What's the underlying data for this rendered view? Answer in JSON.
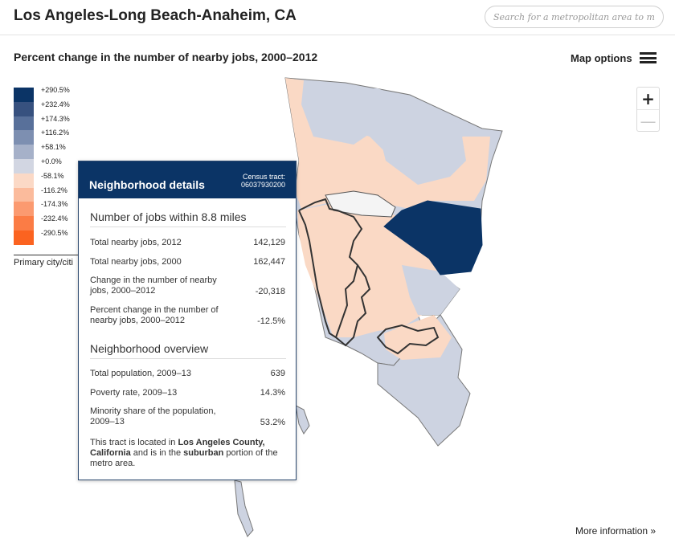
{
  "header": {
    "title": "Los Angeles-Long Beach-Anaheim, CA",
    "search_placeholder": "Search for a metropolitan area to map"
  },
  "subheader": {
    "title": "Percent change in the number of nearby jobs, 2000–2012",
    "map_options_label": "Map options"
  },
  "legend": {
    "items": [
      {
        "label": "+290.5%",
        "color": "#0b3466"
      },
      {
        "label": "+232.4%",
        "color": "#37517f"
      },
      {
        "label": "+174.3%",
        "color": "#58709a"
      },
      {
        "label": "+116.2%",
        "color": "#7d8fb1"
      },
      {
        "label": "+58.1%",
        "color": "#a6b1c9"
      },
      {
        "label": "+0.0%",
        "color": "#d2d6e2"
      },
      {
        "label": "-58.1%",
        "color": "#fbd9c6"
      },
      {
        "label": "-116.2%",
        "color": "#fbbb9c"
      },
      {
        "label": "-174.3%",
        "color": "#fb9a70"
      },
      {
        "label": "-232.4%",
        "color": "#fb7c45"
      },
      {
        "label": "-290.5%",
        "color": "#fb6320"
      }
    ],
    "primary_label": "Primary city/citi"
  },
  "zoom": {
    "in": "+",
    "out": "—"
  },
  "panel": {
    "title": "Neighborhood details",
    "tract_label": "Census tract:",
    "tract_id": "06037930200",
    "jobs_heading": "Number of jobs within 8.8 miles",
    "jobs_rows": [
      {
        "label": "Total nearby jobs, 2012",
        "value": "142,129"
      },
      {
        "label": "Total nearby jobs, 2000",
        "value": "162,447"
      },
      {
        "label": "Change in the number of nearby jobs, 2000–2012",
        "value": "-20,318"
      },
      {
        "label": "Percent change in the number of nearby jobs, 2000–2012",
        "value": "-12.5%"
      }
    ],
    "overview_heading": "Neighborhood overview",
    "overview_rows": [
      {
        "label": "Total population, 2009–13",
        "value": "639"
      },
      {
        "label": "Poverty rate, 2009–13",
        "value": "14.3%"
      },
      {
        "label": "Minority share of the population, 2009–13",
        "value": "53.2%"
      }
    ],
    "note_prefix": "This tract is located in ",
    "note_county": "Los Angeles County, California",
    "note_middle": " and is in the ",
    "note_type": "suburban",
    "note_suffix": " portion of the metro area."
  },
  "footer": {
    "more_info": "More information »"
  },
  "colors": {
    "map_gray": "#cdd3e1",
    "map_peach": "#fad9c5",
    "map_navy": "#0b3466",
    "map_white": "#f3f3f3",
    "panel_header": "#0b3466"
  }
}
